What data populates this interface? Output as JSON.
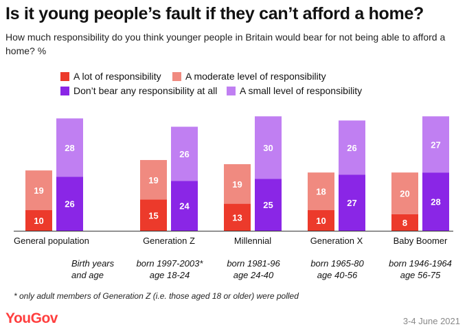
{
  "title": "Is it young people’s fault if they can’t afford a home?",
  "subtitle": "How much responsibility do you think younger people in Britain would bear for not being able to afford a home? %",
  "legend": [
    {
      "label": "A lot of responsibility",
      "color": "#ec3a2b"
    },
    {
      "label": "A moderate level of responsibility",
      "color": "#f08a80"
    },
    {
      "label": "Don’t bear any responsibility at all",
      "color": "#8a26e6"
    },
    {
      "label": "A small level of responsibility",
      "color": "#c07ff2"
    }
  ],
  "birth_label_line1": "Birth years",
  "birth_label_line2": "and age",
  "groups": [
    {
      "name": "General population",
      "birth": "",
      "age": ""
    },
    {
      "name": "Generation Z",
      "birth": "born 1997-2003*",
      "age": "age 18-24"
    },
    {
      "name": "Millennial",
      "birth": "born 1981-96",
      "age": "age 24-40"
    },
    {
      "name": "Generation X",
      "birth": "born 1965-80",
      "age": "age 40-56"
    },
    {
      "name": "Baby Boomer",
      "birth": "born 1946-1964",
      "age": "age 56-75"
    }
  ],
  "footnote": "* only adult members of Generation Z (i.e. those aged 18 or older) were polled",
  "brand": "YouGov",
  "date": "3-4 June 2021",
  "chart_data": {
    "type": "bar",
    "stacked": true,
    "categories": [
      "General population",
      "Generation Z",
      "Millennial",
      "Generation X",
      "Baby Boomer"
    ],
    "stacks": [
      {
        "series": [
          {
            "name": "A lot of responsibility",
            "color": "#ec3a2b",
            "values": [
              10,
              15,
              13,
              10,
              8
            ]
          },
          {
            "name": "A moderate level of responsibility",
            "color": "#f08a80",
            "values": [
              19,
              19,
              19,
              18,
              20
            ]
          }
        ]
      },
      {
        "series": [
          {
            "name": "Don’t bear any responsibility at all",
            "color": "#8a26e6",
            "values": [
              26,
              24,
              25,
              27,
              28
            ]
          },
          {
            "name": "A small level of responsibility",
            "color": "#c07ff2",
            "values": [
              28,
              26,
              30,
              26,
              27
            ]
          }
        ]
      }
    ],
    "grid": false
  }
}
